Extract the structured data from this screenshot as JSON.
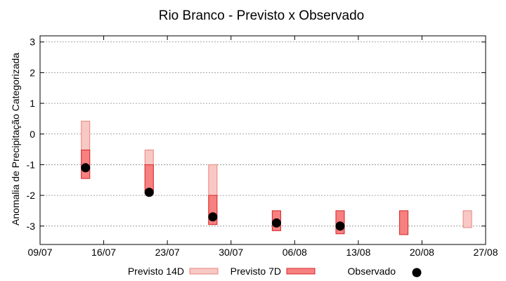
{
  "chart_data": {
    "type": "range-bar",
    "title": "Rio Branco - Previsto x Observado",
    "ylabel": "Anomalia de Precipitação Categorizada",
    "xlabel": "",
    "ylim": [
      -3.6,
      3.2
    ],
    "yticks": [
      -3,
      -2,
      -1,
      0,
      1,
      2,
      3
    ],
    "xlim": [
      "2023-07-09",
      "2023-08-27"
    ],
    "xticks": [
      {
        "date": "2023-07-09",
        "label": "09/07"
      },
      {
        "date": "2023-07-16",
        "label": "16/07"
      },
      {
        "date": "2023-07-23",
        "label": "23/07"
      },
      {
        "date": "2023-07-30",
        "label": "30/07"
      },
      {
        "date": "2023-08-06",
        "label": "06/08"
      },
      {
        "date": "2023-08-13",
        "label": "13/08"
      },
      {
        "date": "2023-08-20",
        "label": "20/08"
      },
      {
        "date": "2023-08-27",
        "label": "27/08"
      }
    ],
    "grid": true,
    "legend_position": "bottom",
    "series": [
      {
        "name": "Previsto 14D",
        "color_fill": "#f8c8c4",
        "color_edge": "#e8857c",
        "points": [
          {
            "date": "2023-07-14",
            "low": -1.45,
            "high": 0.42
          },
          {
            "date": "2023-07-21",
            "low": -1.85,
            "high": -0.52
          },
          {
            "date": "2023-07-28",
            "low": -2.95,
            "high": -1.0
          },
          {
            "date": "2023-08-04",
            "low": -3.15,
            "high": -2.5
          },
          {
            "date": "2023-08-11",
            "low": -3.25,
            "high": -2.5
          },
          {
            "date": "2023-08-18",
            "low": -3.28,
            "high": -2.5
          },
          {
            "date": "2023-08-25",
            "low": -3.05,
            "high": -2.5
          }
        ]
      },
      {
        "name": "Previsto 7D",
        "color_fill": "#f78080",
        "color_edge": "#d62828",
        "points": [
          {
            "date": "2023-07-14",
            "low": -1.45,
            "high": -0.52
          },
          {
            "date": "2023-07-21",
            "low": -1.95,
            "high": -1.0
          },
          {
            "date": "2023-07-28",
            "low": -2.95,
            "high": -2.0
          },
          {
            "date": "2023-08-04",
            "low": -3.15,
            "high": -2.5
          },
          {
            "date": "2023-08-11",
            "low": -3.25,
            "high": -2.5
          },
          {
            "date": "2023-08-18",
            "low": -3.28,
            "high": -2.5
          }
        ]
      },
      {
        "name": "Observado",
        "color": "#000000",
        "points": [
          {
            "date": "2023-07-14",
            "value": -1.1
          },
          {
            "date": "2023-07-21",
            "value": -1.9
          },
          {
            "date": "2023-07-28",
            "value": -2.7
          },
          {
            "date": "2023-08-04",
            "value": -2.9
          },
          {
            "date": "2023-08-11",
            "value": -3.0
          }
        ]
      }
    ]
  }
}
